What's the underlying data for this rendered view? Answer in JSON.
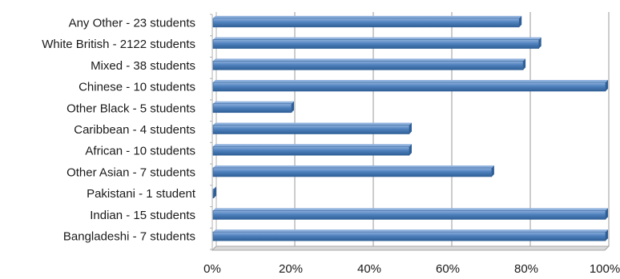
{
  "chart_data": {
    "type": "bar",
    "orientation": "horizontal",
    "title": "",
    "xlabel": "",
    "ylabel": "",
    "categories": [
      "Any Other - 23 students",
      "White British - 2122 students",
      "Mixed - 38 students",
      "Chinese - 10 students",
      "Other Black - 5 students",
      "Caribbean - 4 students",
      "African - 10 students",
      "Other Asian - 7 students",
      "Pakistani - 1 student",
      "Indian - 15 students",
      "Bangladeshi - 7 students"
    ],
    "values": [
      78,
      83,
      79,
      100,
      20,
      50,
      50,
      71,
      0,
      100,
      100
    ],
    "xlim": [
      0,
      100
    ],
    "xticks": [
      "0%",
      "20%",
      "40%",
      "60%",
      "80%",
      "100%"
    ],
    "grid": true,
    "legend": "none",
    "bar_color": "#4f81bd",
    "bar_dark_color": "#2f5f96",
    "bar_light_color": "#8fb1dd"
  }
}
